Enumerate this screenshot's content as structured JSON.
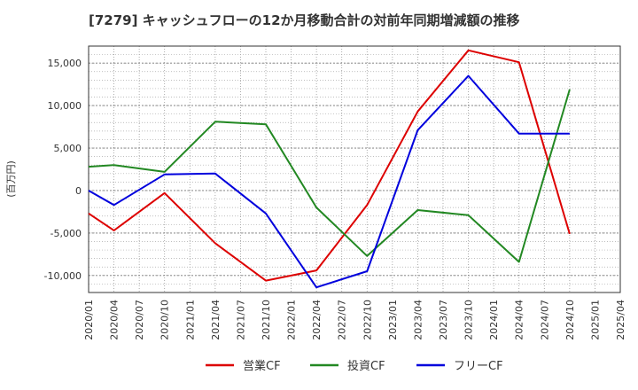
{
  "chart_data": {
    "type": "line",
    "title": "[7279]  キャッシュフローの12か月移動合計の対前年同期増減額の推移",
    "ylabel": "(百万円)",
    "xlabel": "",
    "ylim": [
      -12000,
      17000
    ],
    "yticks": [
      15000,
      10000,
      5000,
      0,
      -5000,
      -10000
    ],
    "ytick_labels": [
      "15,000",
      "10,000",
      "5,000",
      "0",
      "-5,000",
      "-10,000"
    ],
    "categories": [
      "2020/01",
      "2020/04",
      "2020/07",
      "2020/10",
      "2021/01",
      "2021/04",
      "2021/07",
      "2021/10",
      "2022/01",
      "2022/04",
      "2022/07",
      "2022/10",
      "2023/01",
      "2023/04",
      "2023/07",
      "2023/10",
      "2024/01",
      "2024/04",
      "2024/07",
      "2024/10",
      "2025/01",
      "2025/04"
    ],
    "grid": true,
    "legend_position": "bottom-center",
    "series": [
      {
        "name": "営業CF",
        "color": "#dd0000",
        "points": [
          [
            0,
            -2700
          ],
          [
            1,
            -4700
          ],
          [
            3,
            -300
          ],
          [
            5,
            -6200
          ],
          [
            7,
            -10600
          ],
          [
            9,
            -9400
          ],
          [
            11,
            -1700
          ],
          [
            13,
            9300
          ],
          [
            15,
            16500
          ],
          [
            17,
            15100
          ],
          [
            19,
            -5100
          ]
        ]
      },
      {
        "name": "投資CF",
        "color": "#228822",
        "points": [
          [
            0,
            2800
          ],
          [
            1,
            3000
          ],
          [
            3,
            2200
          ],
          [
            5,
            8100
          ],
          [
            7,
            7800
          ],
          [
            9,
            -2000
          ],
          [
            11,
            -7700
          ],
          [
            13,
            -2300
          ],
          [
            15,
            -2900
          ],
          [
            17,
            -8400
          ],
          [
            19,
            11900
          ]
        ]
      },
      {
        "name": "フリーCF",
        "color": "#0000dd",
        "points": [
          [
            0,
            0
          ],
          [
            1,
            -1700
          ],
          [
            3,
            1900
          ],
          [
            5,
            2000
          ],
          [
            7,
            -2700
          ],
          [
            9,
            -11400
          ],
          [
            11,
            -9500
          ],
          [
            13,
            7100
          ],
          [
            15,
            13500
          ],
          [
            17,
            6700
          ],
          [
            19,
            6700
          ]
        ]
      }
    ]
  }
}
